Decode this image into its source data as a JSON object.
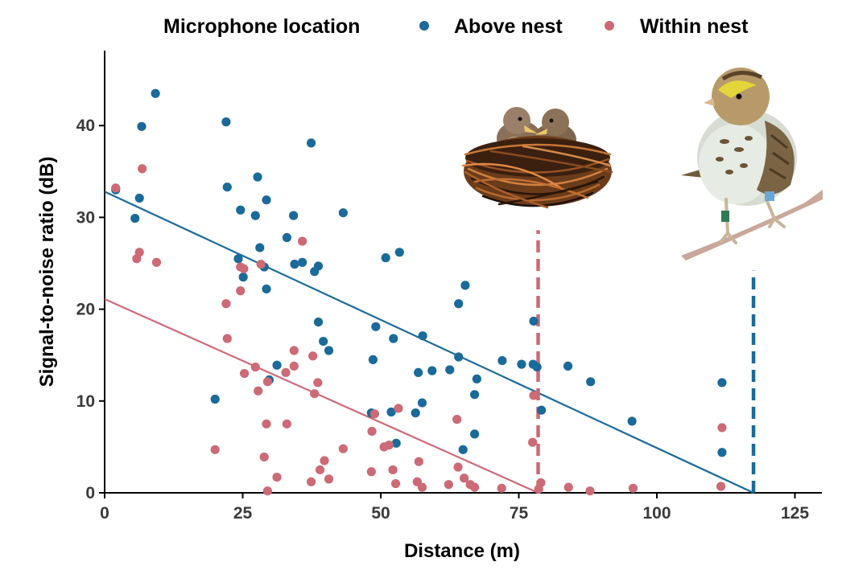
{
  "chart_data": {
    "type": "scatter",
    "xlabel": "Distance (m)",
    "ylabel": "Signal-to-noise ratio (dB)",
    "xlim": [
      0,
      130
    ],
    "ylim": [
      0,
      48
    ],
    "xticks": [
      0,
      25,
      50,
      75,
      100,
      125
    ],
    "yticks": [
      0,
      10,
      20,
      30,
      40
    ],
    "grid": false,
    "legend": {
      "title": "Microphone location",
      "position": "top"
    },
    "series": [
      {
        "name": "Above nest",
        "color": "#1a6a9a",
        "points": [
          [
            2,
            33
          ],
          [
            5.5,
            29.9
          ],
          [
            6.3,
            32.1
          ],
          [
            6.7,
            39.9
          ],
          [
            9.2,
            43.5
          ],
          [
            20,
            10.2
          ],
          [
            22,
            40.4
          ],
          [
            22.2,
            33.3
          ],
          [
            24.2,
            25.5
          ],
          [
            24.6,
            30.8
          ],
          [
            25.1,
            23.5
          ],
          [
            27.3,
            30.2
          ],
          [
            27.7,
            34.4
          ],
          [
            28.1,
            26.7
          ],
          [
            28.9,
            24.6
          ],
          [
            29.3,
            31.9
          ],
          [
            29.3,
            22.2
          ],
          [
            29.8,
            12.3
          ],
          [
            31.2,
            13.9
          ],
          [
            33,
            27.8
          ],
          [
            34.2,
            30.2
          ],
          [
            34.4,
            24.9
          ],
          [
            35.8,
            25.1
          ],
          [
            37.4,
            38.1
          ],
          [
            38,
            24.1
          ],
          [
            38.7,
            18.6
          ],
          [
            38.7,
            24.7
          ],
          [
            39.6,
            16.5
          ],
          [
            40.6,
            15.5
          ],
          [
            43.2,
            30.5
          ],
          [
            48.3,
            8.7
          ],
          [
            48.6,
            14.5
          ],
          [
            49.1,
            18.1
          ],
          [
            50.9,
            25.6
          ],
          [
            51.9,
            8.8
          ],
          [
            52.3,
            16.8
          ],
          [
            52.8,
            5.4
          ],
          [
            53.4,
            26.2
          ],
          [
            56.3,
            8.7
          ],
          [
            56.8,
            13.1
          ],
          [
            57.5,
            9.8
          ],
          [
            57.6,
            17.1
          ],
          [
            59.3,
            13.3
          ],
          [
            62.5,
            13.4
          ],
          [
            64.1,
            14.8
          ],
          [
            64.1,
            20.6
          ],
          [
            64.9,
            4.7
          ],
          [
            65.3,
            22.6
          ],
          [
            67,
            6.4
          ],
          [
            67,
            10.7
          ],
          [
            67.4,
            12.4
          ],
          [
            72,
            14.4
          ],
          [
            75.5,
            14
          ],
          [
            77.6,
            14
          ],
          [
            77.7,
            18.7
          ],
          [
            78.3,
            13.7
          ],
          [
            79.1,
            9.0
          ],
          [
            83.9,
            13.8
          ],
          [
            88,
            12.1
          ],
          [
            95.5,
            7.8
          ],
          [
            111.8,
            12
          ],
          [
            111.8,
            4.4
          ]
        ],
        "fit": {
          "intercept": 32.8,
          "end_x": 117.5
        }
      },
      {
        "name": "Within nest",
        "color": "#cc6a76",
        "points": [
          [
            2,
            33.2
          ],
          [
            5.8,
            25.5
          ],
          [
            6.3,
            26.2
          ],
          [
            6.8,
            35.3
          ],
          [
            9.4,
            25.1
          ],
          [
            20,
            4.7
          ],
          [
            22,
            20.6
          ],
          [
            22.2,
            16.8
          ],
          [
            24.6,
            24.6
          ],
          [
            24.6,
            22
          ],
          [
            25.2,
            24.4
          ],
          [
            25.3,
            13
          ],
          [
            27.3,
            13.7
          ],
          [
            27.8,
            11.1
          ],
          [
            28.3,
            24.9
          ],
          [
            28.9,
            3.9
          ],
          [
            29.3,
            7.5
          ],
          [
            29.5,
            12.1
          ],
          [
            29.5,
            0.2
          ],
          [
            31.2,
            1.7
          ],
          [
            32.8,
            13.1
          ],
          [
            33,
            7.5
          ],
          [
            34.3,
            15.5
          ],
          [
            34.3,
            13.8
          ],
          [
            35.8,
            27.4
          ],
          [
            37.4,
            1.2
          ],
          [
            37.7,
            14.9
          ],
          [
            38,
            10.8
          ],
          [
            38.6,
            12
          ],
          [
            39,
            2.5
          ],
          [
            39.8,
            3.5
          ],
          [
            40.6,
            1.5
          ],
          [
            43.2,
            4.8
          ],
          [
            48.3,
            2.3
          ],
          [
            48.4,
            6.7
          ],
          [
            48.9,
            8.6
          ],
          [
            50.6,
            5
          ],
          [
            51.5,
            5.2
          ],
          [
            52.2,
            2.5
          ],
          [
            52.7,
            1
          ],
          [
            53.2,
            9.2
          ],
          [
            56.6,
            1.2
          ],
          [
            56.9,
            3.4
          ],
          [
            57.5,
            0.6
          ],
          [
            62.3,
            0.9
          ],
          [
            63.8,
            8
          ],
          [
            64,
            2.8
          ],
          [
            65.1,
            1.6
          ],
          [
            66.2,
            0.9
          ],
          [
            67,
            0.6
          ],
          [
            71.9,
            0.5
          ],
          [
            77.5,
            5.5
          ],
          [
            77.7,
            10.6
          ],
          [
            78.6,
            0.4
          ],
          [
            79,
            1.1
          ],
          [
            84,
            0.6
          ],
          [
            87.9,
            0.2
          ],
          [
            95.7,
            0.5
          ],
          [
            111.8,
            7.1
          ],
          [
            111.6,
            0.7
          ]
        ],
        "fit": {
          "intercept": 21.1,
          "end_x": 78.5
        }
      }
    ],
    "reference_lines": [
      {
        "x": 78.5,
        "color": "#cc6a76",
        "style": "dashed",
        "from_y": 0,
        "to_y": 28.6
      },
      {
        "x": 117.5,
        "color": "#1a6a9a",
        "style": "dashed",
        "from_y": 0,
        "to_y": 24.2
      }
    ],
    "illustrations": [
      "nest-with-chicks-icon",
      "sparrow-on-branch-icon"
    ]
  }
}
